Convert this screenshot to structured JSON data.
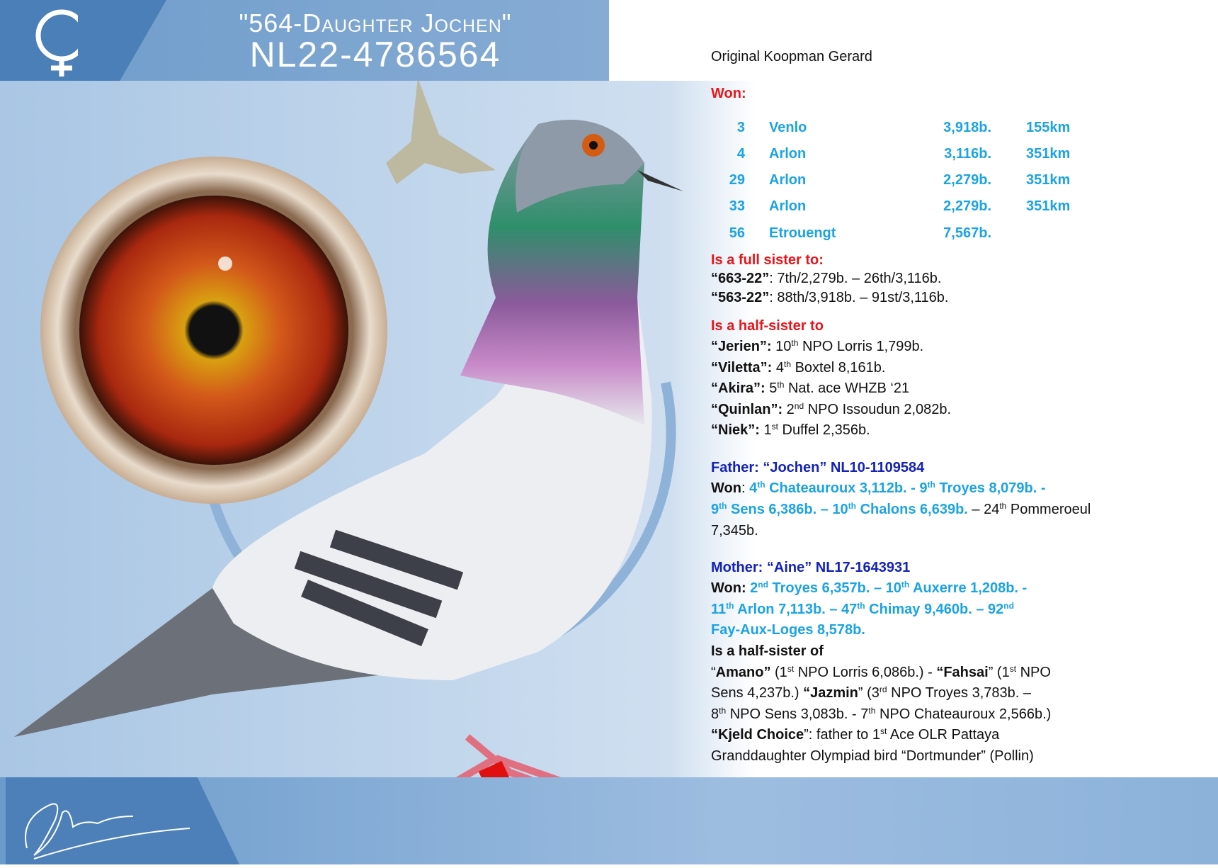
{
  "header": {
    "name": "\"564-Daughter Jochen\"",
    "ring": "NL22-4786564",
    "sex_icon": "female-symbol"
  },
  "origin": "Original Koopman Gerard",
  "won_label": "Won:",
  "results": [
    {
      "place": "3",
      "race": "Venlo",
      "birds": "3,918b.",
      "distance": "155km"
    },
    {
      "place": "4",
      "race": "Arlon",
      "birds": "3,116b.",
      "distance": "351km"
    },
    {
      "place": "29",
      "race": "Arlon",
      "birds": "2,279b.",
      "distance": "351km"
    },
    {
      "place": "33",
      "race": "Arlon",
      "birds": "2,279b.",
      "distance": "351km"
    },
    {
      "place": "56",
      "race": "Etrouengt",
      "birds": "7,567b.",
      "distance": ""
    }
  ],
  "colors": {
    "red": "#e8151b",
    "cyan": "#1ba3e3",
    "navy": "#1322b8",
    "header_blue": "#4a7fb8"
  },
  "lines": [
    [
      {
        "text": "Is a full sister to:",
        "style": "r"
      }
    ],
    [
      {
        "text": "“663-22”",
        "style": "b"
      },
      {
        "text": ": 7th/2,279b. – 26th/3,116b.",
        "style": "n"
      }
    ],
    [
      {
        "text": "“563-22”",
        "style": "b"
      },
      {
        "text": ": 88th/3,918b. – 91st/3,116b.",
        "style": "n"
      }
    ],
    [
      {
        "text": "Is a half-sister to",
        "style": "r"
      }
    ],
    [
      {
        "text": "“Jerien”: ",
        "style": "b"
      },
      {
        "text": "10",
        "style": "n"
      },
      {
        "text": "th",
        "style": "n sup"
      },
      {
        "text": " NPO Lorris 1,799b.",
        "style": "n"
      }
    ],
    [
      {
        "text": "“Viletta”: ",
        "style": "b"
      },
      {
        "text": "4",
        "style": "n"
      },
      {
        "text": "th",
        "style": "n sup"
      },
      {
        "text": " Boxtel 8,161b.",
        "style": "n"
      }
    ],
    [
      {
        "text": "“Akira”: ",
        "style": "b"
      },
      {
        "text": "5",
        "style": "n"
      },
      {
        "text": "th",
        "style": "n sup"
      },
      {
        "text": " Nat. ace WHZB ‘21",
        "style": "n"
      }
    ],
    [
      {
        "text": "“Quinlan”: ",
        "style": "b"
      },
      {
        "text": "2",
        "style": "n"
      },
      {
        "text": "nd",
        "style": "n sup"
      },
      {
        "text": " NPO Issoudun 2,082b.",
        "style": "n"
      }
    ],
    [
      {
        "text": "“Niek”: ",
        "style": "b"
      },
      {
        "text": "1",
        "style": "n"
      },
      {
        "text": "st",
        "style": "n sup"
      },
      {
        "text": " Duffel 2,356b.",
        "style": "n"
      }
    ],
    [
      {
        "text": "Father: “Jochen” NL10-1109584",
        "style": "d"
      }
    ],
    [
      {
        "text": "Won",
        "style": "b"
      },
      {
        "text": ": ",
        "style": "n"
      },
      {
        "text": "4",
        "style": "c"
      },
      {
        "text": "th",
        "style": "c sup"
      },
      {
        "text": " Chateauroux 3,112b. - 9",
        "style": "c"
      },
      {
        "text": "th",
        "style": "c sup"
      },
      {
        "text": " Troyes 8,079b. -",
        "style": "c"
      }
    ],
    [
      {
        "text": "9",
        "style": "c"
      },
      {
        "text": "th",
        "style": "c sup"
      },
      {
        "text": " Sens 6,386b. – 10",
        "style": "c"
      },
      {
        "text": "th",
        "style": "c sup"
      },
      {
        "text": " Chalons 6,639b.",
        "style": "c"
      },
      {
        "text": " – 24",
        "style": "n"
      },
      {
        "text": "th",
        "style": "n sup"
      },
      {
        "text": " Pommeroeul",
        "style": "n"
      }
    ],
    [
      {
        "text": "7,345b.",
        "style": "n"
      }
    ],
    [
      {
        "text": "Mother: “Aine” NL17-1643931",
        "style": "d"
      }
    ],
    [
      {
        "text": "Won: ",
        "style": "b"
      },
      {
        "text": "2",
        "style": "c"
      },
      {
        "text": "nd",
        "style": "c sup"
      },
      {
        "text": " Troyes 6,357b. – 10",
        "style": "c"
      },
      {
        "text": "th",
        "style": "c sup"
      },
      {
        "text": " Auxerre 1,208b. -",
        "style": "c"
      }
    ],
    [
      {
        "text": "11",
        "style": "c"
      },
      {
        "text": "th",
        "style": "c sup"
      },
      {
        "text": " Arlon 7,113b. – 47",
        "style": "c"
      },
      {
        "text": "th",
        "style": "c sup"
      },
      {
        "text": " Chimay 9,460b. – 92",
        "style": "c"
      },
      {
        "text": "nd",
        "style": "c sup"
      }
    ],
    [
      {
        "text": "Fay-Aux-Loges 8,578b.",
        "style": "c"
      }
    ],
    [
      {
        "text": "Is a half-sister of",
        "style": "b"
      }
    ],
    [
      {
        "text": "“",
        "style": "n"
      },
      {
        "text": "Amano”",
        "style": "b"
      },
      {
        "text": " (1",
        "style": "n"
      },
      {
        "text": "st",
        "style": "n sup"
      },
      {
        "text": " NPO Lorris 6,086b.) - ",
        "style": "n"
      },
      {
        "text": "“Fahsai",
        "style": "b"
      },
      {
        "text": "” (1",
        "style": "n"
      },
      {
        "text": "st",
        "style": "n sup"
      },
      {
        "text": " NPO",
        "style": "n"
      }
    ],
    [
      {
        "text": "Sens 4,237b.) ",
        "style": "n"
      },
      {
        "text": "“Jazmin",
        "style": "b"
      },
      {
        "text": "” (3",
        "style": "n"
      },
      {
        "text": "rd",
        "style": "n sup"
      },
      {
        "text": " NPO Troyes 3,783b. –",
        "style": "n"
      }
    ],
    [
      {
        "text": "8",
        "style": "n"
      },
      {
        "text": "th",
        "style": "n sup"
      },
      {
        "text": " NPO Sens 3,083b. - 7",
        "style": "n"
      },
      {
        "text": "th",
        "style": "n sup"
      },
      {
        "text": " NPO Chateauroux 2,566b.)",
        "style": "n"
      }
    ],
    [
      {
        "text": "“Kjeld Choice",
        "style": "b"
      },
      {
        "text": "”: father to 1",
        "style": "n"
      },
      {
        "text": "st",
        "style": "n sup"
      },
      {
        "text": " Ace OLR Pattaya",
        "style": "n"
      }
    ],
    [
      {
        "text": "Granddaughter Olympiad bird “Dortmunder” (Pollin)",
        "style": "n"
      }
    ]
  ],
  "signature": "Koopman"
}
